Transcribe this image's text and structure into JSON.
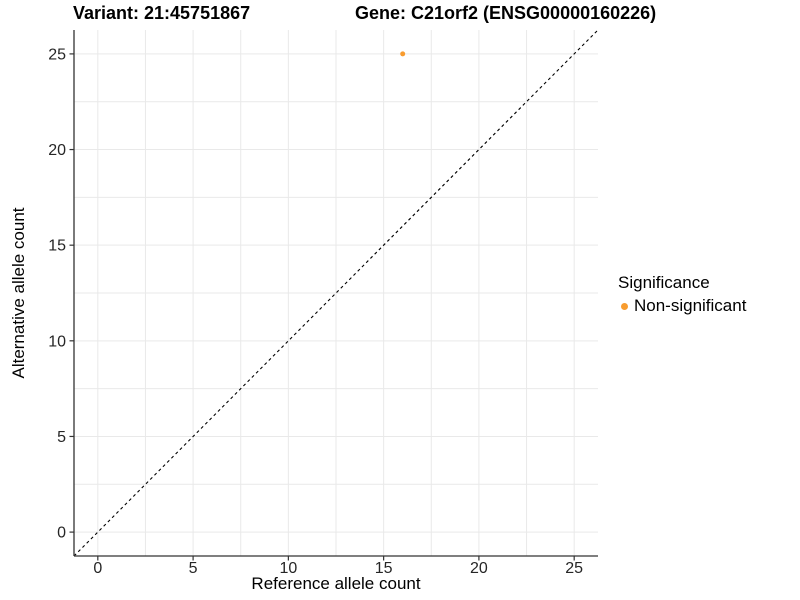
{
  "header": {
    "variant_title": "Variant: 21:45751867",
    "gene_title": "Gene: C21orf2 (ENSG00000160226)"
  },
  "chart_data": {
    "type": "scatter",
    "xlabel": "Reference allele count",
    "ylabel": "Alternative allele count",
    "xlim": [
      -1.25,
      26.25
    ],
    "ylim": [
      -1.25,
      26.25
    ],
    "xticks": [
      0,
      5,
      10,
      15,
      20,
      25
    ],
    "yticks": [
      0,
      5,
      10,
      15,
      20,
      25
    ],
    "grid_range": [
      0,
      25
    ],
    "grid_step": 2.5,
    "grid_on": true,
    "grid_color": "#e9e9e9",
    "axis_color": "#333333",
    "tick_label_color": "#262626",
    "identity_line": {
      "slope": 1,
      "intercept": 0,
      "style": "dashed",
      "color": "#000000"
    },
    "series": [
      {
        "name": "Non-significant",
        "color": "#F89C2F",
        "points": [
          {
            "x": 16,
            "y": 25
          }
        ]
      }
    ],
    "legend": {
      "title": "Significance",
      "position": "right",
      "items": [
        {
          "label": "Non-significant",
          "color": "#F89C2F"
        }
      ]
    }
  }
}
